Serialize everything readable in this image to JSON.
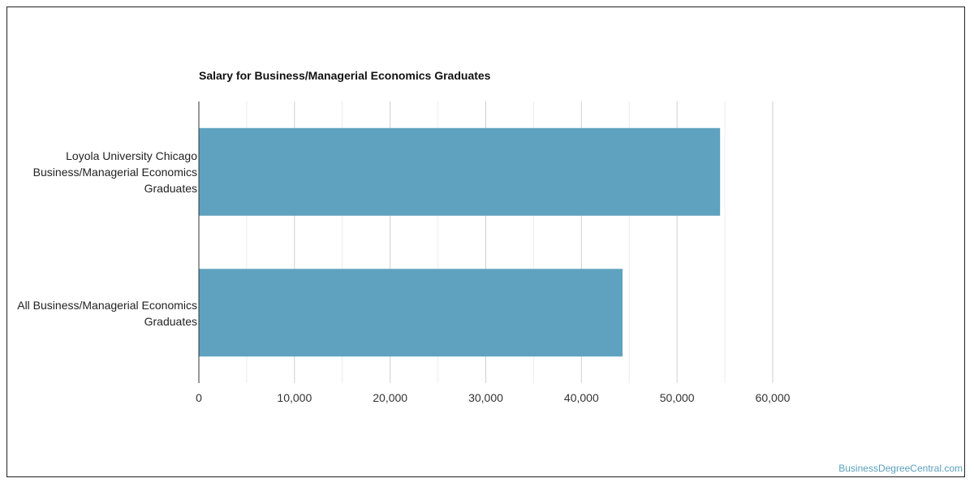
{
  "chart_data": {
    "type": "bar",
    "orientation": "horizontal",
    "title": "Salary for Business/Managerial Economics Graduates",
    "categories": [
      "Loyola University Chicago Business/Managerial Economics Graduates",
      "All Business/Managerial Economics Graduates"
    ],
    "values": [
      54500,
      44300
    ],
    "xlim": [
      0,
      60000
    ],
    "xticks": [
      0,
      10000,
      20000,
      30000,
      40000,
      50000,
      60000
    ],
    "xtick_labels": [
      "0",
      "10,000",
      "20,000",
      "30,000",
      "40,000",
      "50,000",
      "60,000"
    ],
    "grid": true,
    "bar_color": "#5fa2bf"
  },
  "source": "BusinessDegreeCentral.com"
}
